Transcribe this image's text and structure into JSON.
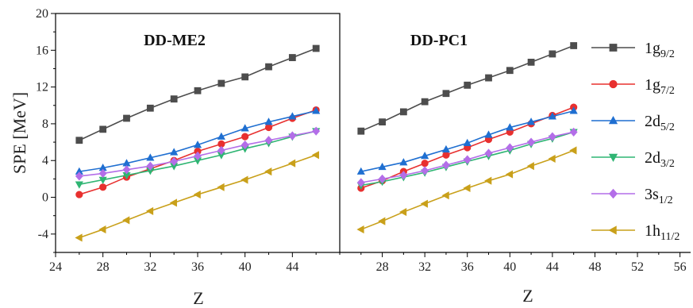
{
  "chart_data": [
    {
      "type": "line",
      "title": "DD-ME2",
      "xlabel": "Z",
      "ylabel": "SPE [MeV]",
      "xlim": [
        24,
        48
      ],
      "ylim": [
        -6,
        20
      ],
      "xticks": [
        24,
        28,
        32,
        36,
        40,
        44
      ],
      "yticks": [
        -4,
        0,
        4,
        8,
        12,
        16,
        20
      ],
      "x": [
        26,
        28,
        30,
        32,
        34,
        36,
        38,
        40,
        42,
        44,
        46
      ],
      "series": [
        {
          "name": "1g",
          "sub": "9/2",
          "color": "#4d4d4d",
          "marker": "square",
          "values": [
            6.2,
            7.4,
            8.6,
            9.7,
            10.7,
            11.6,
            12.4,
            13.1,
            14.2,
            15.2,
            16.2
          ]
        },
        {
          "name": "1g",
          "sub": "7/2",
          "color": "#e8302f",
          "marker": "circle",
          "values": [
            0.3,
            1.1,
            2.2,
            3.1,
            4.0,
            5.0,
            5.8,
            6.6,
            7.6,
            8.6,
            9.5
          ]
        },
        {
          "name": "2d",
          "sub": "5/2",
          "color": "#1f6fd1",
          "marker": "triangle-up",
          "values": [
            2.8,
            3.2,
            3.7,
            4.3,
            4.9,
            5.7,
            6.6,
            7.5,
            8.2,
            8.8,
            9.4
          ]
        },
        {
          "name": "2d",
          "sub": "3/2",
          "color": "#2fb573",
          "marker": "triangle-down",
          "values": [
            1.4,
            1.9,
            2.4,
            2.9,
            3.4,
            4.0,
            4.6,
            5.3,
            5.9,
            6.6,
            7.2
          ]
        },
        {
          "name": "3s",
          "sub": "1/2",
          "color": "#b36ee8",
          "marker": "diamond",
          "values": [
            2.3,
            2.6,
            3.0,
            3.4,
            3.9,
            4.5,
            5.1,
            5.7,
            6.2,
            6.7,
            7.2
          ]
        },
        {
          "name": "1h",
          "sub": "11/2",
          "color": "#c9a01a",
          "marker": "triangle-left",
          "values": [
            -4.4,
            -3.5,
            -2.5,
            -1.5,
            -0.6,
            0.3,
            1.1,
            1.9,
            2.8,
            3.7,
            4.6
          ]
        }
      ]
    },
    {
      "type": "line",
      "title": "DD-PC1",
      "xlabel": "Z",
      "ylabel": "",
      "xlim": [
        24,
        57
      ],
      "ylim": [
        -6,
        20
      ],
      "xticks": [
        28,
        32,
        36,
        40,
        44,
        48,
        52,
        56
      ],
      "yticks": [],
      "x": [
        26,
        28,
        30,
        32,
        34,
        36,
        38,
        40,
        42,
        44,
        46
      ],
      "series": [
        {
          "name": "1g",
          "sub": "9/2",
          "color": "#4d4d4d",
          "marker": "square",
          "values": [
            7.2,
            8.2,
            9.3,
            10.4,
            11.3,
            12.2,
            13.0,
            13.8,
            14.7,
            15.6,
            16.5
          ]
        },
        {
          "name": "1g",
          "sub": "7/2",
          "color": "#e8302f",
          "marker": "circle",
          "values": [
            1.0,
            1.8,
            2.8,
            3.7,
            4.6,
            5.4,
            6.3,
            7.1,
            8.0,
            8.9,
            9.8
          ]
        },
        {
          "name": "2d",
          "sub": "5/2",
          "color": "#1f6fd1",
          "marker": "triangle-up",
          "values": [
            2.8,
            3.3,
            3.8,
            4.5,
            5.2,
            5.9,
            6.8,
            7.6,
            8.2,
            8.8,
            9.4
          ]
        },
        {
          "name": "2d",
          "sub": "3/2",
          "color": "#2fb573",
          "marker": "triangle-down",
          "values": [
            1.3,
            1.7,
            2.2,
            2.7,
            3.3,
            3.9,
            4.5,
            5.1,
            5.8,
            6.4,
            7.1
          ]
        },
        {
          "name": "3s",
          "sub": "1/2",
          "color": "#b36ee8",
          "marker": "diamond",
          "values": [
            1.6,
            2.0,
            2.4,
            2.9,
            3.5,
            4.1,
            4.8,
            5.4,
            6.0,
            6.6,
            7.1
          ]
        },
        {
          "name": "1h",
          "sub": "11/2",
          "color": "#c9a01a",
          "marker": "triangle-left",
          "values": [
            -3.5,
            -2.6,
            -1.6,
            -0.7,
            0.2,
            1.0,
            1.8,
            2.5,
            3.4,
            4.2,
            5.1
          ]
        }
      ]
    }
  ]
}
